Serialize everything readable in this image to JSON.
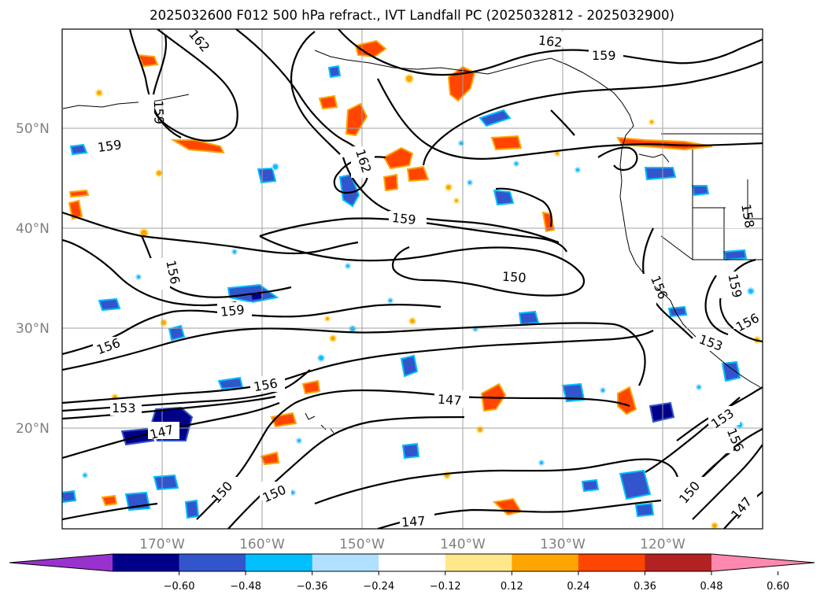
{
  "title": "2025032600 F012 500 hPa refract., IVT Landfall PC (2025032812 - 2025032900)",
  "map": {
    "lat_labels": [
      "50°N",
      "40°N",
      "30°N",
      "20°N"
    ],
    "lon_labels": [
      "170°W",
      "160°W",
      "150°W",
      "140°W",
      "130°W",
      "120°W"
    ],
    "grid": true,
    "contour_labels": [
      {
        "text": "162",
        "key": "c162a"
      },
      {
        "text": "162",
        "key": "c162b"
      },
      {
        "text": "162",
        "key": "c162c"
      },
      {
        "text": "159",
        "key": "c159a"
      },
      {
        "text": "159",
        "key": "c159b"
      },
      {
        "text": "159",
        "key": "c159c"
      },
      {
        "text": "159",
        "key": "c159d"
      },
      {
        "text": "159",
        "key": "c159e"
      },
      {
        "text": "159",
        "key": "c159f"
      },
      {
        "text": "158",
        "key": "c158"
      },
      {
        "text": "156",
        "key": "c156a"
      },
      {
        "text": "156",
        "key": "c156b"
      },
      {
        "text": "156",
        "key": "c156c"
      },
      {
        "text": "156",
        "key": "c156d"
      },
      {
        "text": "156",
        "key": "c156e"
      },
      {
        "text": "153",
        "key": "c153a"
      },
      {
        "text": "153",
        "key": "c153b"
      },
      {
        "text": "153",
        "key": "c153c"
      },
      {
        "text": "150",
        "key": "c150a"
      },
      {
        "text": "150",
        "key": "c150b"
      },
      {
        "text": "150",
        "key": "c150c"
      },
      {
        "text": "150",
        "key": "c150d"
      },
      {
        "text": "147",
        "key": "c147a"
      },
      {
        "text": "147",
        "key": "c147b"
      },
      {
        "text": "147",
        "key": "c147c"
      },
      {
        "text": "147",
        "key": "c147d"
      },
      {
        "text": "156",
        "key": "c156f"
      }
    ]
  },
  "colorbar": {
    "ticks": [
      "−0.60",
      "−0.48",
      "−0.36",
      "−0.24",
      "−0.12",
      "0.12",
      "0.24",
      "0.36",
      "0.48",
      "0.60"
    ],
    "colors": [
      "#9932cc",
      "#00008b",
      "#3355cc",
      "#00bfff",
      "#afe0ff",
      "#ffffff",
      "#ffe88a",
      "#ffa500",
      "#ff4500",
      "#b22222",
      "#ff89ae"
    ]
  }
}
